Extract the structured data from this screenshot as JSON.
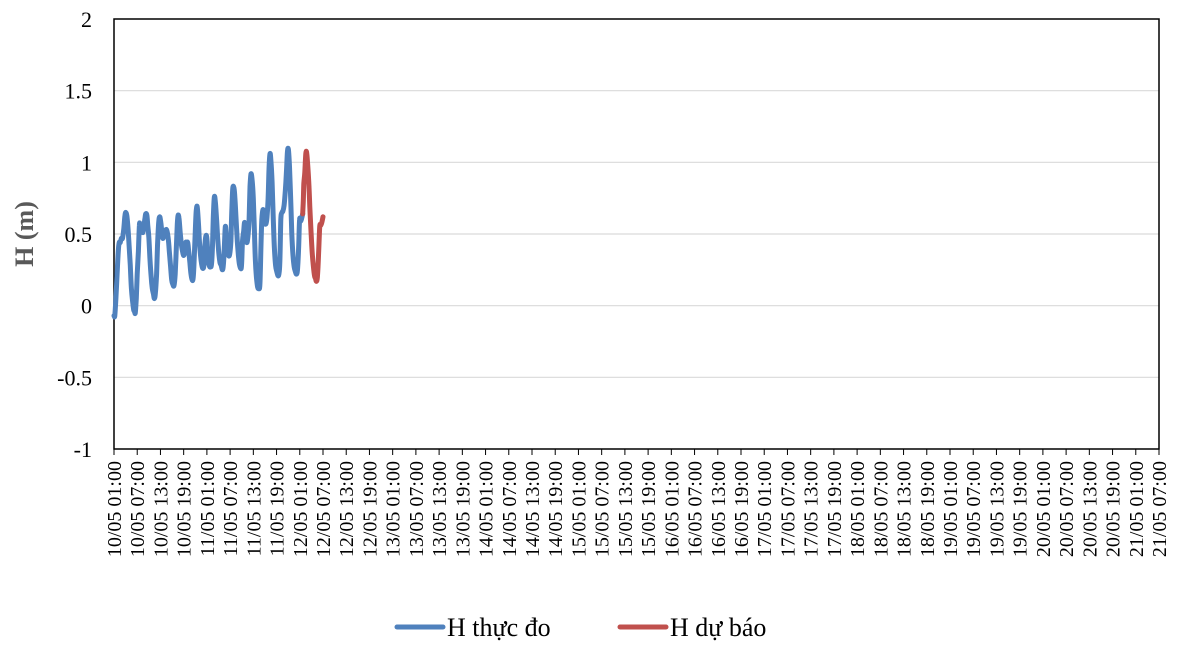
{
  "chart_data": {
    "type": "line",
    "ylabel": "H (m)",
    "xlabel": "",
    "ylim": [
      -1,
      2
    ],
    "yticks": [
      "-1",
      "-0.5",
      "0",
      "0.5",
      "1",
      "1.5",
      "2"
    ],
    "grid": true,
    "legend_position": "bottom-center",
    "x_categories": [
      "10/05 01:00",
      "10/05 07:00",
      "10/05 13:00",
      "10/05 19:00",
      "11/05 01:00",
      "11/05 07:00",
      "11/05 13:00",
      "11/05 19:00",
      "12/05 01:00",
      "12/05 07:00",
      "12/05 13:00",
      "12/05 19:00",
      "13/05 01:00",
      "13/05 07:00",
      "13/05 13:00",
      "13/05 19:00",
      "14/05 01:00",
      "14/05 07:00",
      "14/05 13:00",
      "14/05 19:00",
      "15/05 01:00",
      "15/05 07:00",
      "15/05 13:00",
      "15/05 19:00",
      "16/05 01:00",
      "16/05 07:00",
      "16/05 13:00",
      "16/05 19:00",
      "17/05 01:00",
      "17/05 07:00",
      "17/05 13:00",
      "17/05 19:00",
      "18/05 01:00",
      "18/05 07:00",
      "18/05 13:00",
      "18/05 19:00",
      "19/05 01:00",
      "19/05 07:00",
      "19/05 13:00",
      "19/05 19:00",
      "20/05 01:00",
      "20/05 07:00",
      "20/05 13:00",
      "20/05 19:00",
      "21/05 01:00",
      "21/05 07:00"
    ],
    "series": [
      {
        "name": "H thực đo",
        "color": "#4F81BD",
        "points": [
          [
            0,
            -0.07
          ],
          [
            0.2,
            -0.07
          ],
          [
            0.5,
            0.05
          ],
          [
            0.8,
            0.22
          ],
          [
            1.1,
            0.38
          ],
          [
            1.35,
            0.44
          ],
          [
            1.6,
            0.44
          ],
          [
            1.9,
            0.47
          ],
          [
            2.2,
            0.47
          ],
          [
            2.5,
            0.53
          ],
          [
            2.8,
            0.62
          ],
          [
            3.0,
            0.65
          ],
          [
            3.3,
            0.63
          ],
          [
            3.6,
            0.55
          ],
          [
            3.9,
            0.42
          ],
          [
            4.2,
            0.28
          ],
          [
            4.5,
            0.12
          ],
          [
            4.8,
            0.03
          ],
          [
            5.1,
            -0.03
          ],
          [
            5.3,
            -0.04
          ],
          [
            5.5,
            -0.05
          ],
          [
            5.75,
            0.05
          ],
          [
            6.0,
            0.22
          ],
          [
            6.3,
            0.38
          ],
          [
            6.55,
            0.56
          ],
          [
            6.75,
            0.57
          ],
          [
            7.0,
            0.56
          ],
          [
            7.2,
            0.55
          ],
          [
            7.45,
            0.51
          ],
          [
            7.7,
            0.55
          ],
          [
            8.0,
            0.61
          ],
          [
            8.2,
            0.64
          ],
          [
            8.5,
            0.63
          ],
          [
            8.75,
            0.55
          ],
          [
            9.0,
            0.48
          ],
          [
            9.3,
            0.32
          ],
          [
            9.6,
            0.2
          ],
          [
            9.9,
            0.12
          ],
          [
            10.2,
            0.08
          ],
          [
            10.45,
            0.05
          ],
          [
            10.7,
            0.09
          ],
          [
            11.0,
            0.22
          ],
          [
            11.25,
            0.42
          ],
          [
            11.55,
            0.58
          ],
          [
            11.8,
            0.62
          ],
          [
            12.05,
            0.59
          ],
          [
            12.3,
            0.53
          ],
          [
            12.6,
            0.47
          ],
          [
            12.9,
            0.49
          ],
          [
            13.15,
            0.49
          ],
          [
            13.4,
            0.53
          ],
          [
            13.7,
            0.52
          ],
          [
            14.0,
            0.47
          ],
          [
            14.3,
            0.38
          ],
          [
            14.6,
            0.28
          ],
          [
            14.9,
            0.18
          ],
          [
            15.2,
            0.15
          ],
          [
            15.5,
            0.14
          ],
          [
            15.8,
            0.22
          ],
          [
            16.1,
            0.4
          ],
          [
            16.35,
            0.57
          ],
          [
            16.55,
            0.63
          ],
          [
            16.8,
            0.61
          ],
          [
            17.1,
            0.51
          ],
          [
            17.4,
            0.43
          ],
          [
            17.7,
            0.38
          ],
          [
            18.0,
            0.35
          ],
          [
            18.3,
            0.38
          ],
          [
            18.55,
            0.44
          ],
          [
            18.8,
            0.44
          ],
          [
            19.05,
            0.44
          ],
          [
            19.3,
            0.38
          ],
          [
            19.6,
            0.3
          ],
          [
            19.9,
            0.22
          ],
          [
            20.2,
            0.18
          ],
          [
            20.45,
            0.19
          ],
          [
            20.7,
            0.31
          ],
          [
            21.0,
            0.52
          ],
          [
            21.25,
            0.66
          ],
          [
            21.5,
            0.69
          ],
          [
            21.8,
            0.58
          ],
          [
            22.1,
            0.44
          ],
          [
            22.4,
            0.34
          ],
          [
            22.7,
            0.28
          ],
          [
            23.0,
            0.26
          ],
          [
            23.25,
            0.29
          ],
          [
            23.5,
            0.43
          ],
          [
            23.8,
            0.49
          ],
          [
            24.05,
            0.45
          ],
          [
            24.3,
            0.33
          ],
          [
            24.6,
            0.28
          ],
          [
            24.9,
            0.27
          ],
          [
            25.2,
            0.29
          ],
          [
            25.45,
            0.42
          ],
          [
            25.7,
            0.65
          ],
          [
            25.95,
            0.76
          ],
          [
            26.2,
            0.72
          ],
          [
            26.5,
            0.6
          ],
          [
            26.8,
            0.47
          ],
          [
            27.1,
            0.36
          ],
          [
            27.4,
            0.3
          ],
          [
            27.7,
            0.28
          ],
          [
            28.0,
            0.25
          ],
          [
            28.25,
            0.28
          ],
          [
            28.5,
            0.4
          ],
          [
            28.75,
            0.55
          ],
          [
            29.0,
            0.5
          ],
          [
            29.3,
            0.4
          ],
          [
            29.6,
            0.35
          ],
          [
            29.9,
            0.36
          ],
          [
            30.2,
            0.45
          ],
          [
            30.45,
            0.68
          ],
          [
            30.7,
            0.82
          ],
          [
            31.0,
            0.82
          ],
          [
            31.25,
            0.75
          ],
          [
            31.55,
            0.6
          ],
          [
            31.85,
            0.45
          ],
          [
            32.15,
            0.35
          ],
          [
            32.4,
            0.29
          ],
          [
            32.7,
            0.26
          ],
          [
            32.95,
            0.28
          ],
          [
            33.2,
            0.45
          ],
          [
            33.5,
            0.52
          ],
          [
            33.75,
            0.58
          ],
          [
            34.0,
            0.5
          ],
          [
            34.3,
            0.44
          ],
          [
            34.6,
            0.48
          ],
          [
            34.9,
            0.6
          ],
          [
            35.15,
            0.83
          ],
          [
            35.4,
            0.92
          ],
          [
            35.7,
            0.87
          ],
          [
            36.0,
            0.75
          ],
          [
            36.3,
            0.5
          ],
          [
            36.55,
            0.3
          ],
          [
            36.8,
            0.2
          ],
          [
            37.1,
            0.13
          ],
          [
            37.4,
            0.12
          ],
          [
            37.7,
            0.15
          ],
          [
            37.95,
            0.4
          ],
          [
            38.2,
            0.6
          ],
          [
            38.5,
            0.67
          ],
          [
            38.75,
            0.63
          ],
          [
            39.0,
            0.58
          ],
          [
            39.25,
            0.57
          ],
          [
            39.5,
            0.61
          ],
          [
            39.8,
            0.73
          ],
          [
            40.05,
            0.95
          ],
          [
            40.3,
            1.06
          ],
          [
            40.55,
            1.01
          ],
          [
            40.85,
            0.86
          ],
          [
            41.15,
            0.6
          ],
          [
            41.45,
            0.4
          ],
          [
            41.75,
            0.28
          ],
          [
            42.05,
            0.24
          ],
          [
            42.35,
            0.21
          ],
          [
            42.6,
            0.22
          ],
          [
            42.85,
            0.3
          ],
          [
            43.1,
            0.6
          ],
          [
            43.4,
            0.65
          ],
          [
            43.65,
            0.66
          ],
          [
            43.95,
            0.7
          ],
          [
            44.25,
            0.8
          ],
          [
            44.55,
            0.93
          ],
          [
            44.8,
            1.07
          ],
          [
            45.05,
            1.09
          ],
          [
            45.35,
            0.97
          ],
          [
            45.65,
            0.74
          ],
          [
            45.95,
            0.5
          ],
          [
            46.25,
            0.35
          ],
          [
            46.55,
            0.27
          ],
          [
            46.85,
            0.24
          ],
          [
            47.15,
            0.22
          ],
          [
            47.4,
            0.25
          ],
          [
            47.7,
            0.4
          ],
          [
            47.95,
            0.6
          ],
          [
            48.25,
            0.59
          ],
          [
            48.5,
            0.61
          ],
          [
            48.75,
            0.64
          ]
        ]
      },
      {
        "name": "H dự báo",
        "color": "#C0504D",
        "points": [
          [
            48.75,
            0.64
          ],
          [
            48.9,
            0.73
          ],
          [
            49.05,
            0.85
          ],
          [
            49.3,
            0.93
          ],
          [
            49.55,
            1.06
          ],
          [
            49.75,
            1.07
          ],
          [
            50.0,
            1.0
          ],
          [
            50.3,
            0.87
          ],
          [
            50.6,
            0.69
          ],
          [
            50.9,
            0.52
          ],
          [
            51.2,
            0.37
          ],
          [
            51.5,
            0.28
          ],
          [
            51.8,
            0.21
          ],
          [
            52.05,
            0.19
          ],
          [
            52.3,
            0.17
          ],
          [
            52.55,
            0.2
          ],
          [
            52.85,
            0.35
          ],
          [
            53.15,
            0.55
          ],
          [
            53.4,
            0.56
          ],
          [
            53.7,
            0.58
          ],
          [
            54.0,
            0.62
          ]
        ]
      }
    ]
  }
}
